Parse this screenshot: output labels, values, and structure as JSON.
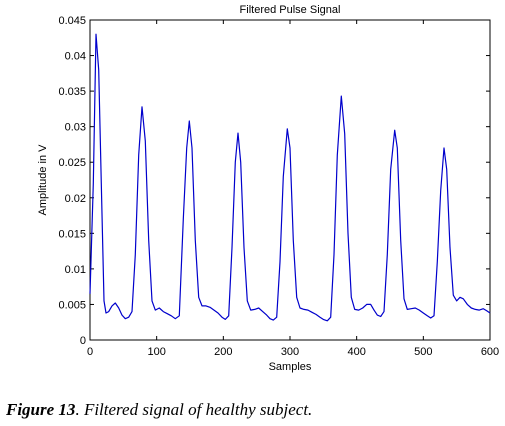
{
  "chart_data": {
    "type": "line",
    "title": "Filtered Pulse Signal",
    "xlabel": "Samples",
    "ylabel": "Amplitude in V",
    "xlim": [
      0,
      600
    ],
    "ylim": [
      0,
      0.045
    ],
    "x_ticks": [
      "0",
      "100",
      "200",
      "300",
      "400",
      "500",
      "600"
    ],
    "y_ticks": [
      "0",
      "0.005",
      "0.01",
      "0.015",
      "0.02",
      "0.025",
      "0.03",
      "0.035",
      "0.04",
      "0.045"
    ],
    "grid": false,
    "series": [
      {
        "color": "#0000cc",
        "points": [
          [
            0,
            0.0065
          ],
          [
            5,
            0.022
          ],
          [
            9,
            0.043
          ],
          [
            13,
            0.038
          ],
          [
            17,
            0.022
          ],
          [
            21,
            0.0055
          ],
          [
            24,
            0.0038
          ],
          [
            28,
            0.004
          ],
          [
            33,
            0.0048
          ],
          [
            38,
            0.0052
          ],
          [
            43,
            0.0045
          ],
          [
            48,
            0.0035
          ],
          [
            53,
            0.003
          ],
          [
            58,
            0.0032
          ],
          [
            63,
            0.004
          ],
          [
            68,
            0.012
          ],
          [
            73,
            0.026
          ],
          [
            78,
            0.0328
          ],
          [
            83,
            0.028
          ],
          [
            88,
            0.014
          ],
          [
            93,
            0.0055
          ],
          [
            98,
            0.0042
          ],
          [
            104,
            0.0045
          ],
          [
            110,
            0.004
          ],
          [
            116,
            0.0037
          ],
          [
            122,
            0.0034
          ],
          [
            128,
            0.003
          ],
          [
            134,
            0.0034
          ],
          [
            140,
            0.017
          ],
          [
            145,
            0.027
          ],
          [
            149,
            0.0308
          ],
          [
            153,
            0.027
          ],
          [
            158,
            0.014
          ],
          [
            163,
            0.006
          ],
          [
            168,
            0.0048
          ],
          [
            174,
            0.0048
          ],
          [
            180,
            0.0046
          ],
          [
            186,
            0.0042
          ],
          [
            192,
            0.0038
          ],
          [
            198,
            0.0032
          ],
          [
            203,
            0.0029
          ],
          [
            208,
            0.0034
          ],
          [
            213,
            0.013
          ],
          [
            218,
            0.025
          ],
          [
            222,
            0.0291
          ],
          [
            226,
            0.025
          ],
          [
            231,
            0.013
          ],
          [
            236,
            0.0055
          ],
          [
            241,
            0.0042
          ],
          [
            247,
            0.0043
          ],
          [
            253,
            0.0045
          ],
          [
            259,
            0.004
          ],
          [
            265,
            0.0035
          ],
          [
            270,
            0.003
          ],
          [
            275,
            0.0028
          ],
          [
            280,
            0.0032
          ],
          [
            285,
            0.011
          ],
          [
            290,
            0.023
          ],
          [
            296,
            0.0297
          ],
          [
            300,
            0.027
          ],
          [
            305,
            0.014
          ],
          [
            310,
            0.006
          ],
          [
            315,
            0.0045
          ],
          [
            321,
            0.0043
          ],
          [
            327,
            0.0042
          ],
          [
            333,
            0.0039
          ],
          [
            339,
            0.0036
          ],
          [
            345,
            0.0032
          ],
          [
            350,
            0.0029
          ],
          [
            356,
            0.0027
          ],
          [
            361,
            0.0032
          ],
          [
            366,
            0.012
          ],
          [
            371,
            0.026
          ],
          [
            377,
            0.0343
          ],
          [
            382,
            0.029
          ],
          [
            387,
            0.015
          ],
          [
            392,
            0.006
          ],
          [
            397,
            0.0043
          ],
          [
            403,
            0.0042
          ],
          [
            409,
            0.0045
          ],
          [
            415,
            0.005
          ],
          [
            421,
            0.005
          ],
          [
            426,
            0.0042
          ],
          [
            431,
            0.0035
          ],
          [
            436,
            0.0033
          ],
          [
            441,
            0.004
          ],
          [
            446,
            0.012
          ],
          [
            451,
            0.024
          ],
          [
            457,
            0.0295
          ],
          [
            461,
            0.027
          ],
          [
            466,
            0.014
          ],
          [
            471,
            0.0058
          ],
          [
            476,
            0.0043
          ],
          [
            482,
            0.0044
          ],
          [
            488,
            0.0045
          ],
          [
            494,
            0.0042
          ],
          [
            500,
            0.0038
          ],
          [
            506,
            0.0034
          ],
          [
            511,
            0.0031
          ],
          [
            516,
            0.0034
          ],
          [
            521,
            0.011
          ],
          [
            526,
            0.021
          ],
          [
            531,
            0.027
          ],
          [
            535,
            0.024
          ],
          [
            540,
            0.013
          ],
          [
            545,
            0.0063
          ],
          [
            550,
            0.0055
          ],
          [
            555,
            0.006
          ],
          [
            560,
            0.0058
          ],
          [
            566,
            0.005
          ],
          [
            572,
            0.0045
          ],
          [
            578,
            0.0043
          ],
          [
            584,
            0.0042
          ],
          [
            590,
            0.0044
          ],
          [
            595,
            0.0041
          ],
          [
            600,
            0.0038
          ]
        ]
      }
    ]
  },
  "caption": {
    "label": "Figure 13",
    "text": ". Filtered signal of healthy subject."
  }
}
